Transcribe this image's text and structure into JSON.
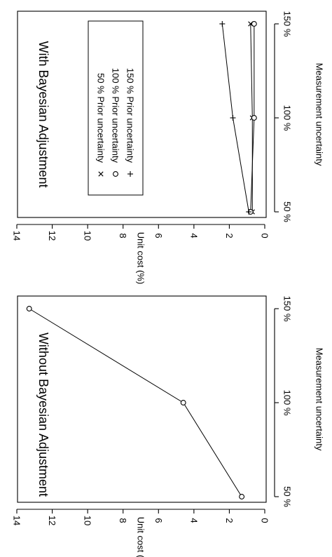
{
  "chart_data": [
    {
      "type": "line",
      "title": "Without Bayesian Adjustment",
      "xlabel": "Measurement uncertainty",
      "ylabel": "Unit cost (%)",
      "categories": [
        "50 %",
        "100 %",
        "150 %"
      ],
      "ylim": [
        0,
        14
      ],
      "yticks": [
        "0",
        "2",
        "4",
        "6",
        "8",
        "10",
        "12",
        "14"
      ],
      "series": [
        {
          "marker": "o",
          "values": [
            1.3,
            4.6,
            13.3
          ]
        }
      ]
    },
    {
      "type": "line",
      "title": "With Bayesian Adjustment",
      "xlabel": "Measurement uncertainty",
      "ylabel": "Unit cost (%)",
      "categories": [
        "50 %",
        "100 %",
        "150 %"
      ],
      "ylim": [
        0,
        14
      ],
      "yticks": [
        "0",
        "2",
        "4",
        "6",
        "8",
        "10",
        "12",
        "14"
      ],
      "legend_position": "top-left",
      "series": [
        {
          "name": "50 % Prior uncertainty",
          "marker": "x",
          "values": [
            0.7,
            0.7,
            0.8
          ]
        },
        {
          "name": "100 % Prior uncertainty",
          "marker": "o",
          "values": [
            0.8,
            0.6,
            0.6
          ]
        },
        {
          "name": "150 % Prior uncertainty",
          "marker": "+",
          "values": [
            0.9,
            1.8,
            2.4
          ]
        }
      ]
    }
  ]
}
